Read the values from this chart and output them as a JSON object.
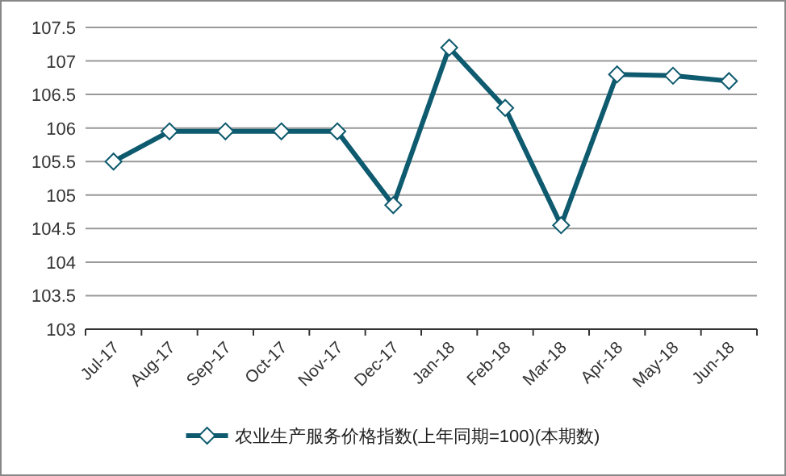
{
  "chart_data": {
    "type": "line",
    "categories": [
      "Jul-17",
      "Aug-17",
      "Sep-17",
      "Oct-17",
      "Nov-17",
      "Dec-17",
      "Jan-18",
      "Feb-18",
      "Mar-18",
      "Apr-18",
      "May-18",
      "Jun-18"
    ],
    "series": [
      {
        "name": "农业生产服务价格指数(上年同期=100)(本期数)",
        "color": "#0e5a6e",
        "values": [
          105.5,
          105.95,
          105.95,
          105.95,
          105.95,
          104.85,
          107.2,
          106.3,
          104.55,
          106.8,
          106.78,
          106.7
        ]
      }
    ],
    "ylim": [
      103,
      107.5
    ],
    "yticks": [
      103,
      103.5,
      104,
      104.5,
      105,
      105.5,
      106,
      106.5,
      107,
      107.5
    ],
    "grid": "y",
    "legend": "bottom",
    "marker": "diamond",
    "line_style": "solid"
  }
}
